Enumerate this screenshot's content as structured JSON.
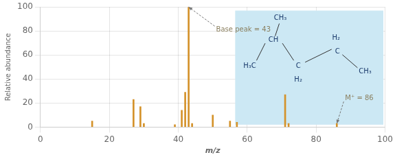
{
  "chart_data": {
    "type": "bar",
    "x": [
      15,
      27,
      29,
      30,
      39,
      41,
      42,
      43,
      44,
      50,
      55,
      57,
      71,
      72,
      86
    ],
    "values": [
      5,
      23,
      17,
      3,
      2,
      14,
      29,
      100,
      3,
      10,
      5,
      4,
      27,
      3,
      3
    ],
    "color": "#d4922a",
    "xlabel": "m/z",
    "ylabel": "Relative abundance",
    "xlim": [
      0,
      100
    ],
    "ylim": [
      0,
      100
    ],
    "xticks": [
      0,
      20,
      40,
      60,
      80,
      100
    ],
    "yticks": [
      0,
      20,
      40,
      60,
      80,
      100
    ],
    "grid": true,
    "annotations": [
      {
        "text": "Base peak = 43",
        "x": 43,
        "y": 100
      },
      {
        "text": "M⁺ = 86",
        "x": 86,
        "y": 3
      },
      {
        "text": "CH₃"
      },
      {
        "text": "CH"
      },
      {
        "text": "H₃C"
      },
      {
        "text": "C"
      },
      {
        "text": "H₂"
      },
      {
        "text": "H₂"
      },
      {
        "text": "C"
      },
      {
        "text": "CH₃"
      }
    ]
  }
}
